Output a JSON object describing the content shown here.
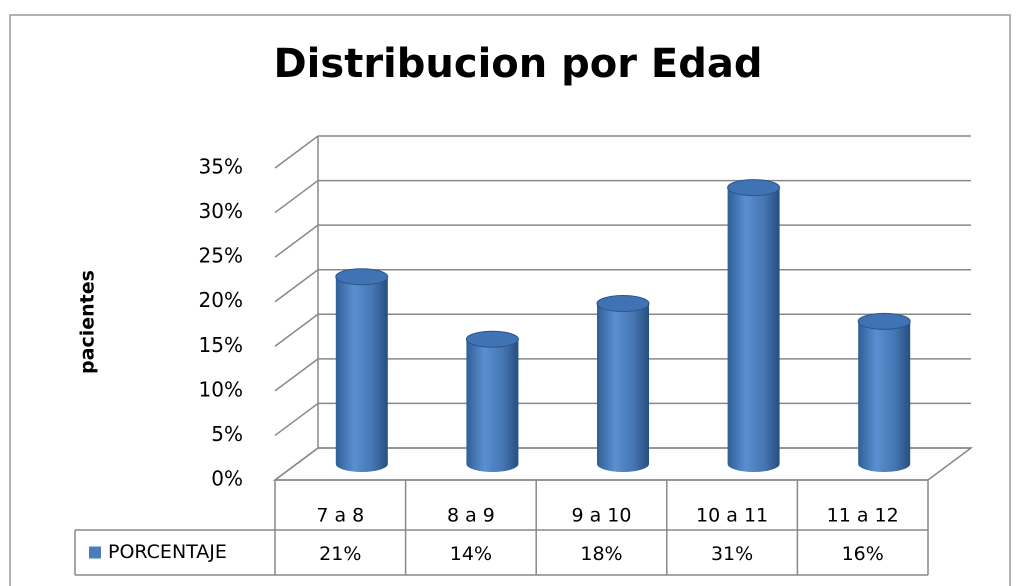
{
  "chart_data": {
    "type": "bar3d",
    "title": "Distribucion por Edad",
    "y_label": "pacientes",
    "categories": [
      "7 a 8",
      "8 a 9",
      "9 a 10",
      "10 a 11",
      "11 a 12"
    ],
    "series": [
      {
        "name": "PORCENTAJE",
        "color": "#4a7ebb",
        "values": [
          21,
          14,
          18,
          31,
          16
        ],
        "value_labels": [
          "21%",
          "14%",
          "18%",
          "31%",
          "16%"
        ]
      }
    ],
    "ylim": [
      0,
      35
    ],
    "yticks": [
      {
        "value": 0,
        "label": "0%"
      },
      {
        "value": 5,
        "label": "5%"
      },
      {
        "value": 10,
        "label": "10%"
      },
      {
        "value": 15,
        "label": "15%"
      },
      {
        "value": 20,
        "label": "20%"
      },
      {
        "value": 25,
        "label": "25%"
      },
      {
        "value": 30,
        "label": "30%"
      },
      {
        "value": 35,
        "label": "35%"
      }
    ],
    "grid": true
  }
}
